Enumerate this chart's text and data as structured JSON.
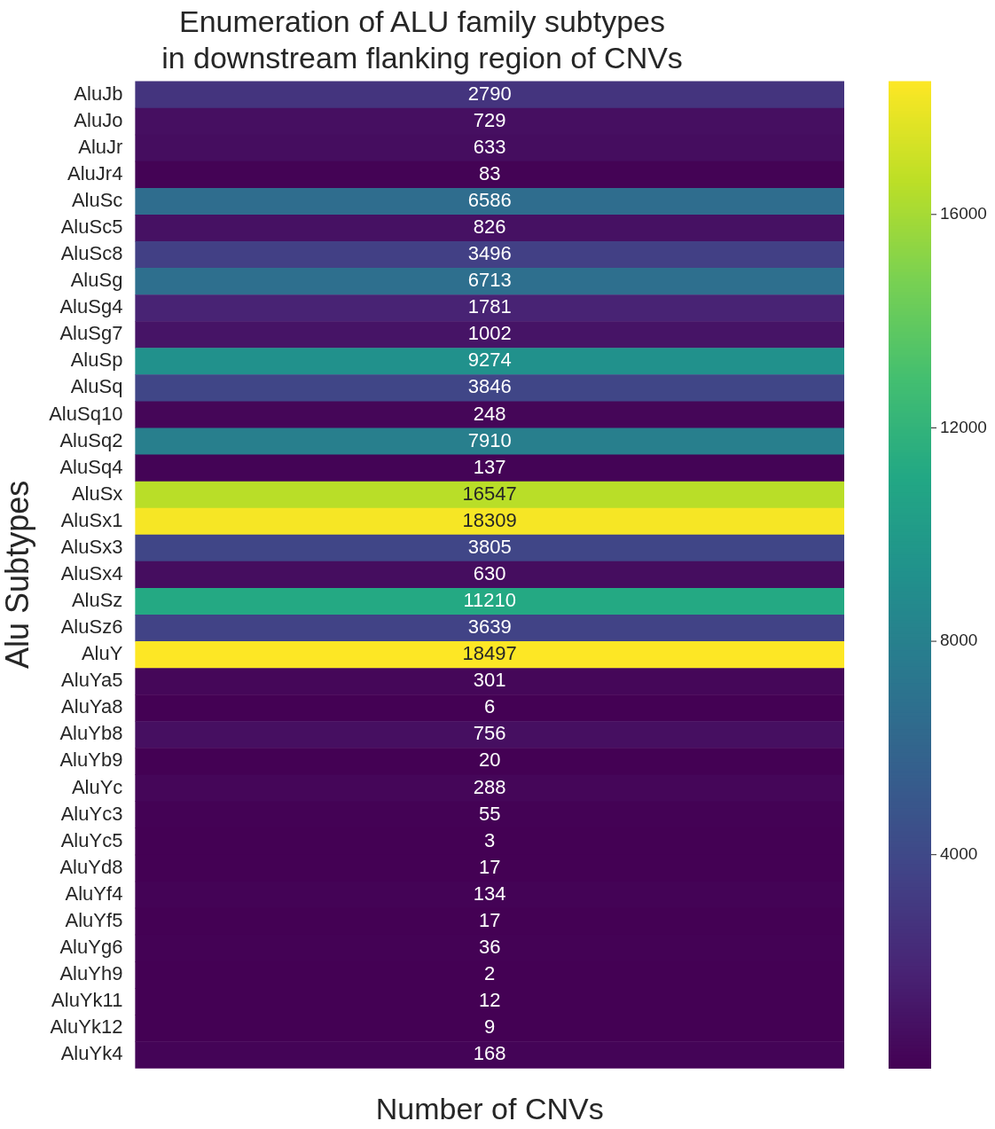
{
  "chart_data": {
    "type": "heatmap",
    "title": "Enumeration of ALU family subtypes\nin downstream flanking region of CNVs",
    "xlabel": "Number of CNVs",
    "ylabel": "Alu Subtypes",
    "categories": [
      null
    ],
    "y_categories": [
      "AluJb",
      "AluJo",
      "AluJr",
      "AluJr4",
      "AluSc",
      "AluSc5",
      "AluSc8",
      "AluSg",
      "AluSg4",
      "AluSg7",
      "AluSp",
      "AluSq",
      "AluSq10",
      "AluSq2",
      "AluSq4",
      "AluSx",
      "AluSx1",
      "AluSx3",
      "AluSx4",
      "AluSz",
      "AluSz6",
      "AluY",
      "AluYa5",
      "AluYa8",
      "AluYb8",
      "AluYb9",
      "AluYc",
      "AluYc3",
      "AluYc5",
      "AluYd8",
      "AluYf4",
      "AluYf5",
      "AluYg6",
      "AluYh9",
      "AluYk11",
      "AluYk12",
      "AluYk4"
    ],
    "cells": [
      [
        2790
      ],
      [
        729
      ],
      [
        633
      ],
      [
        83
      ],
      [
        6586
      ],
      [
        826
      ],
      [
        3496
      ],
      [
        6713
      ],
      [
        1781
      ],
      [
        1002
      ],
      [
        9274
      ],
      [
        3846
      ],
      [
        248
      ],
      [
        7910
      ],
      [
        137
      ],
      [
        16547
      ],
      [
        18309
      ],
      [
        3805
      ],
      [
        630
      ],
      [
        11210
      ],
      [
        3639
      ],
      [
        18497
      ],
      [
        301
      ],
      [
        6
      ],
      [
        756
      ],
      [
        20
      ],
      [
        288
      ],
      [
        55
      ],
      [
        3
      ],
      [
        17
      ],
      [
        134
      ],
      [
        17
      ],
      [
        36
      ],
      [
        2
      ],
      [
        12
      ],
      [
        9
      ],
      [
        168
      ]
    ],
    "clim": [
      2,
      18497
    ],
    "cticks": [
      4000,
      8000,
      12000,
      16000
    ],
    "data_labels": true,
    "tick_labels": "y"
  }
}
